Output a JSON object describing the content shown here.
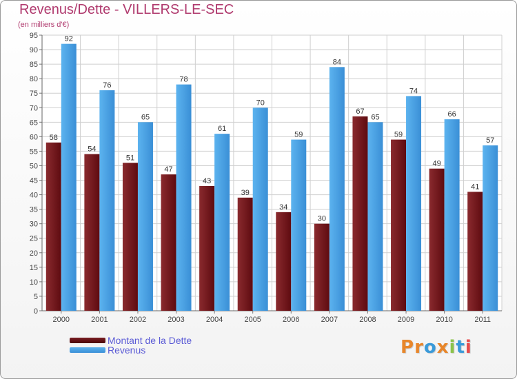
{
  "header": {
    "title": "Revenus/Dette - VILLERS-LE-SEC",
    "subtitle": "(en milliers d'€)"
  },
  "colors": {
    "title": "#b03a6e",
    "dette": "#7a1f23",
    "revenus": "#4fa6e8",
    "legend_text": "#5b5bd6",
    "grid": "#cfcfcf"
  },
  "legend": {
    "items": [
      {
        "label": "Montant de la Dette",
        "color": "#6b0d0d"
      },
      {
        "label": "Revenus",
        "color": "#4fa6e8"
      }
    ]
  },
  "logo": {
    "text": "Proxiti"
  },
  "chart_data": {
    "type": "bar",
    "categories": [
      "2000",
      "2001",
      "2002",
      "2003",
      "2004",
      "2005",
      "2006",
      "2007",
      "2008",
      "2009",
      "2010",
      "2011"
    ],
    "series": [
      {
        "name": "Montant de la Dette",
        "values": [
          58,
          54,
          51,
          47,
          43,
          39,
          34,
          30,
          67,
          59,
          49,
          41
        ]
      },
      {
        "name": "Revenus",
        "values": [
          92,
          76,
          65,
          78,
          61,
          70,
          59,
          84,
          65,
          74,
          66,
          57
        ]
      }
    ],
    "title": "Revenus/Dette - VILLERS-LE-SEC",
    "subtitle": "(en milliers d'€)",
    "xlabel": "",
    "ylabel": "",
    "ylim": [
      0,
      95
    ],
    "ytick_step": 5,
    "grid": true,
    "data_labels": true,
    "legend_position": "bottom-left"
  }
}
